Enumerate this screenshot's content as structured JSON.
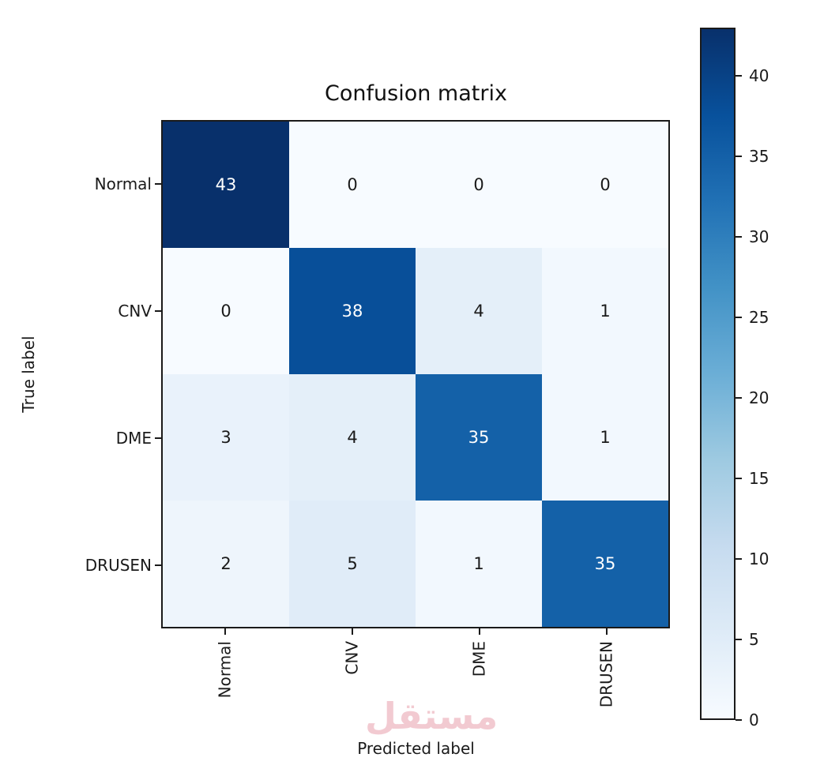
{
  "chart_data": {
    "type": "heatmap",
    "title": "Confusion matrix",
    "xlabel": "Predicted label",
    "ylabel": "True label",
    "x_categories": [
      "Normal",
      "CNV",
      "DME",
      "DRUSEN"
    ],
    "y_categories": [
      "Normal",
      "CNV",
      "DME",
      "DRUSEN"
    ],
    "matrix": [
      [
        43,
        0,
        0,
        0
      ],
      [
        0,
        38,
        4,
        1
      ],
      [
        3,
        4,
        35,
        1
      ],
      [
        2,
        5,
        1,
        35
      ]
    ],
    "vmin": 0,
    "vmax": 43,
    "colormap_name": "Blues",
    "colormap_stops": [
      "#f7fbff",
      "#deebf7",
      "#c6dbef",
      "#9ecae1",
      "#6baed6",
      "#4292c6",
      "#2171b5",
      "#08519c",
      "#08306b"
    ],
    "colorbar_ticks": [
      0,
      5,
      10,
      15,
      20,
      25,
      30,
      35,
      40
    ],
    "cell_text_threshold": 21.5,
    "cell_text_color_high": "#ffffff",
    "cell_text_color_low": "#1a1a1a",
    "legend_position": "right-colorbar",
    "grid": false
  },
  "watermark": {
    "text": "مستقل",
    "color": "#f1c5cd"
  }
}
